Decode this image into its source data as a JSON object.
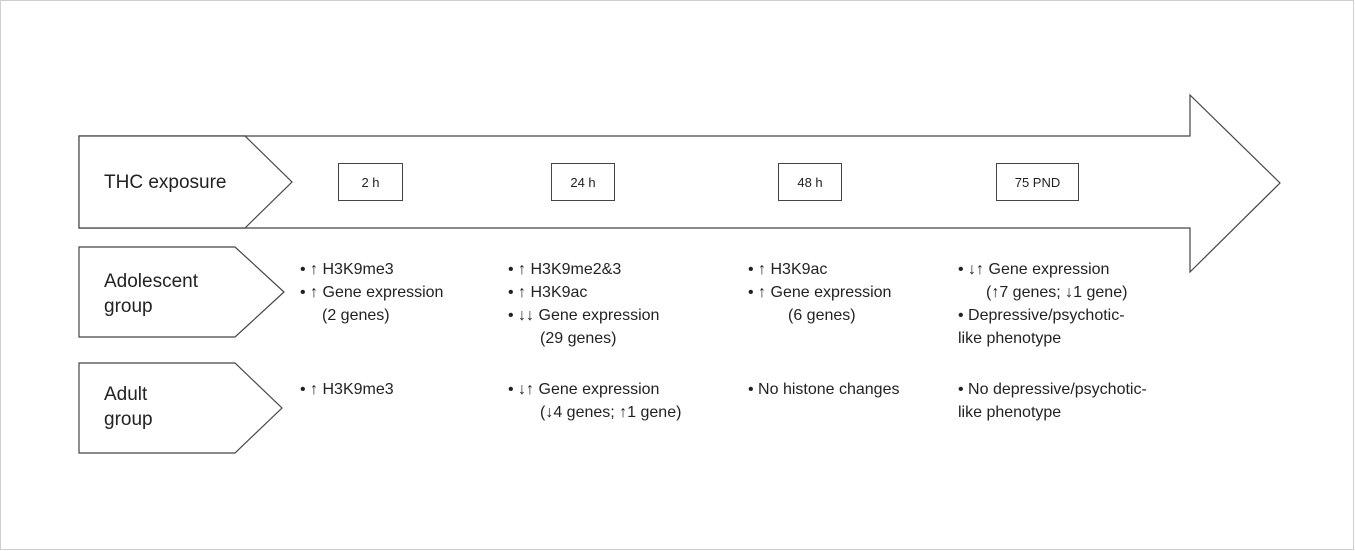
{
  "rows": {
    "exposure_label": "THC exposure",
    "adolescent_label": "Adolescent\ngroup",
    "adult_label": "Adult\ngroup"
  },
  "timepoints": [
    "2 h",
    "24 h",
    "48 h",
    "75 PND"
  ],
  "adolescent": [
    [
      "• ↑ H3K9me3",
      "• ↑ Gene expression",
      "(2 genes)"
    ],
    [
      "• ↑ H3K9me2&3",
      "• ↑ H3K9ac",
      "• ↓↓ Gene expression",
      "(29 genes)"
    ],
    [
      "• ↑ H3K9ac",
      "• ↑ Gene expression",
      "(6 genes)"
    ],
    [
      "• ↓↑ Gene expression",
      "(↑7 genes; ↓1 gene)",
      "• Depressive/psychotic-",
      "like phenotype"
    ]
  ],
  "adult": [
    [
      "• ↑ H3K9me3"
    ],
    [
      "• ↓↑ Gene expression",
      "(↓4 genes; ↑1 gene)"
    ],
    [
      "• No histone changes"
    ],
    [
      "• No depressive/psychotic-",
      "like phenotype"
    ]
  ],
  "colors": {
    "stroke": "#444444",
    "text": "#222222",
    "frame": "#cfcfcf"
  }
}
